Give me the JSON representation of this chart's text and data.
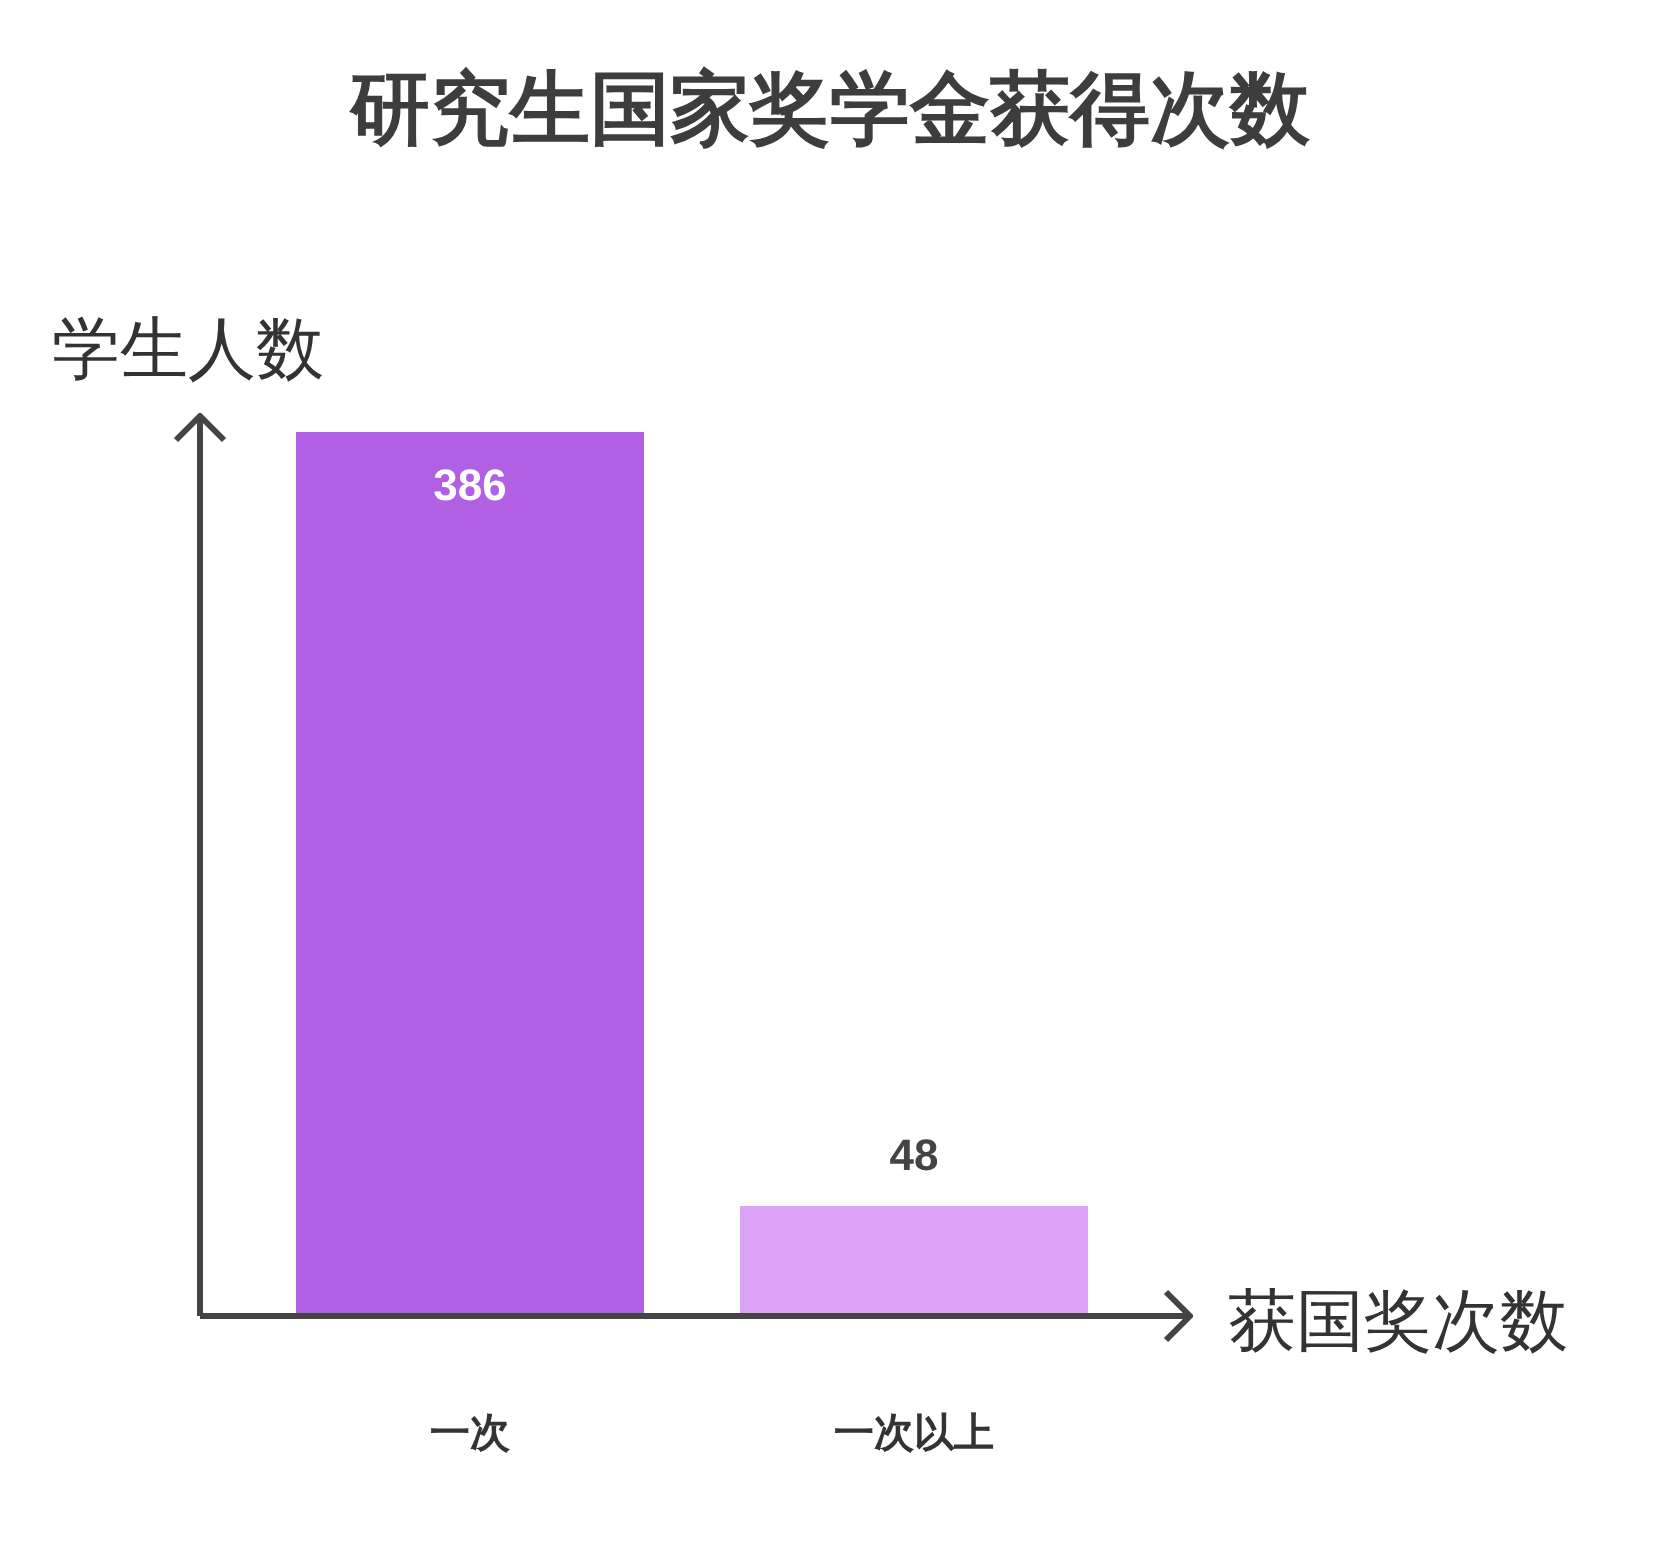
{
  "chart_data": {
    "type": "bar",
    "title": "研究生国家奖学金获得次数",
    "xlabel": "获国奖次数",
    "ylabel": "学生人数",
    "categories": [
      "一次",
      "一次以上"
    ],
    "values": [
      386,
      48
    ],
    "colors": [
      "#b15fe3",
      "#dca2f7"
    ],
    "data_labels": true
  }
}
